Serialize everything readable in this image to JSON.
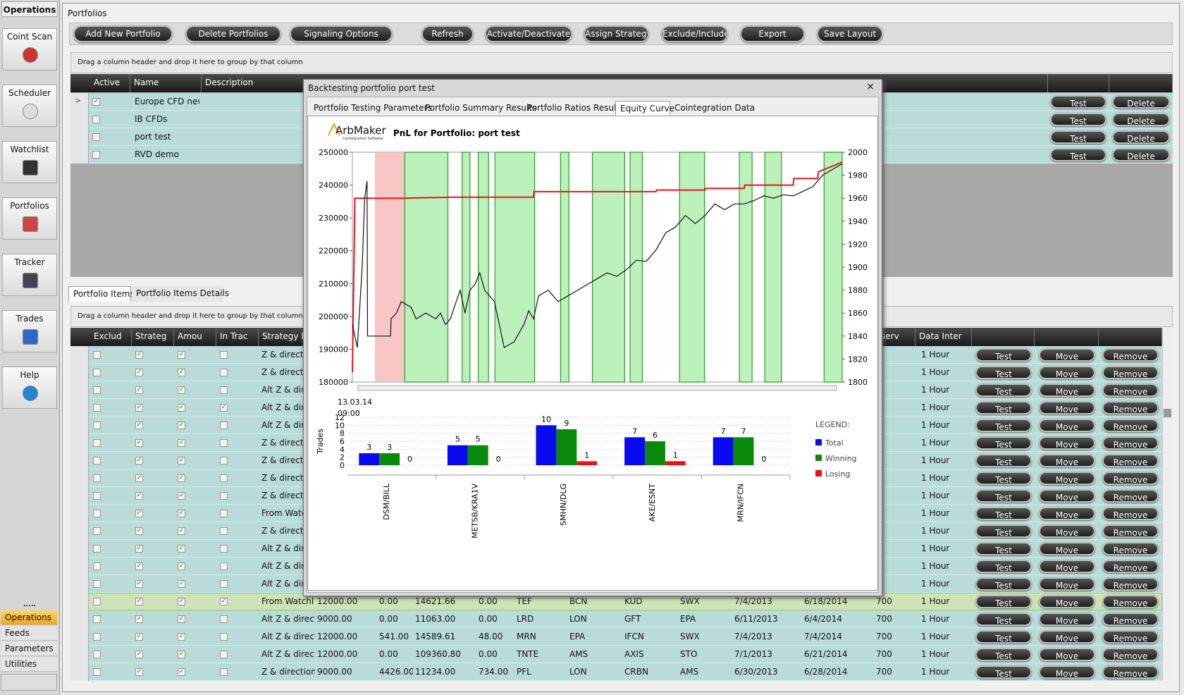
{
  "sidebar": {
    "title": "Operations",
    "buttons": [
      "Coint Scan",
      "Scheduler",
      "Watchlist",
      "Portfolios",
      "Tracker",
      "Trades",
      "Help"
    ],
    "nav": [
      "Operations",
      "Feeds",
      "Parameters",
      "Utilities"
    ]
  },
  "portfolios": {
    "title": "Portfolios",
    "toolbar": [
      "Add New Portfolio",
      "Delete Portfolios",
      "Signaling Options",
      "Refresh",
      "Activate/Deactivate",
      "Assign Strategy",
      "Exclude/Include",
      "Export",
      "Save Layout"
    ],
    "group_hint": "Drag a column header and drop it here to group by that column",
    "columns": [
      "Active",
      "Name",
      "Description"
    ],
    "rows": [
      "Europe CFD new",
      "IB CFDs",
      "port test",
      "RVD demo"
    ],
    "test_button": "Test",
    "delete_button": "Delete"
  },
  "items": {
    "tabs": [
      "Portfolio Items",
      "Portfolio Items Details"
    ],
    "group_hint": "Drag a column header and drop it here to group by that column",
    "columns": [
      "Exclud",
      "Strateg",
      "Amou",
      "In Trac",
      "Strategy N"
    ],
    "observ_column": "serv",
    "interval_column": "Data Inter",
    "test_button": "Test",
    "move_button": "Move",
    "remove_button": "Remove",
    "rows": [
      {
        "strategy": "Z & directi",
        "interval": "1 Hour",
        "in_trade": false
      },
      {
        "strategy": "Z & directi",
        "interval": "1 Hour",
        "in_trade": false
      },
      {
        "strategy": "Alt Z & dire",
        "interval": "1 Hour",
        "in_trade": false
      },
      {
        "strategy": "Alt Z & dire",
        "interval": "1 Hour",
        "in_trade": true
      },
      {
        "strategy": "Alt Z & dire",
        "interval": "1 Hour",
        "in_trade": false
      },
      {
        "strategy": "Z & directi",
        "interval": "1 Hour",
        "in_trade": false
      },
      {
        "strategy": "Z & directi",
        "interval": "1 Hour",
        "in_trade": false
      },
      {
        "strategy": "Z & directi",
        "interval": "1 Hour",
        "in_trade": false
      },
      {
        "strategy": "Z & directi",
        "interval": "1 Hour",
        "in_trade": false
      },
      {
        "strategy": "From Watc",
        "interval": "1 Hour",
        "in_trade": false
      },
      {
        "strategy": "Z & directi",
        "interval": "1 Hour",
        "in_trade": false
      },
      {
        "strategy": "Alt Z & dire",
        "interval": "1 Hour",
        "in_trade": false
      },
      {
        "strategy": "Alt Z & dire",
        "interval": "1 Hour",
        "in_trade": false
      },
      {
        "strategy": "Alt Z & dire",
        "interval": "1 Hour",
        "in_trade": false
      },
      {
        "strategy": "From Watchl",
        "values": [
          "12000.00",
          "0.00",
          "14621.66",
          "0.00",
          "TEF",
          "BCN",
          "KUD",
          "SWX",
          "7/4/2013",
          "6/18/2014"
        ],
        "observ": "700",
        "interval": "1 Hour",
        "in_trade": true
      },
      {
        "strategy": "Alt Z & direct",
        "values": [
          "9000.00",
          "0.00",
          "11063.00",
          "0.00",
          "LRD",
          "LON",
          "GFT",
          "EPA",
          "6/11/2013",
          "6/4/2014"
        ],
        "observ": "700",
        "interval": "1 Hour",
        "in_trade": false
      },
      {
        "strategy": "Alt Z & direct",
        "values": [
          "12000.00",
          "541.00",
          "14589.61",
          "48.00",
          "MRN",
          "EPA",
          "IFCN",
          "SWX",
          "7/4/2013",
          "7/4/2014"
        ],
        "observ": "700",
        "interval": "1 Hour",
        "in_trade": false
      },
      {
        "strategy": "Alt Z & direct",
        "values": [
          "12000.00",
          "0.00",
          "109360.80",
          "0.00",
          "TNTE",
          "AMS",
          "AXIS",
          "STO",
          "7/1/2013",
          "6/21/2014"
        ],
        "observ": "700",
        "interval": "1 Hour",
        "in_trade": false
      },
      {
        "strategy": "Z & direction",
        "values": [
          "9000.00",
          "4426.00",
          "11234.00",
          "734.00",
          "PFL",
          "LON",
          "CRBN",
          "AMS",
          "6/30/2013",
          "6/28/2014"
        ],
        "observ": "700",
        "interval": "1 Hour",
        "in_trade": false
      }
    ]
  },
  "dialog": {
    "title": "Backtesting portfolio port test",
    "tabs": [
      "Portfolio Testing Parameters",
      "Portfolio Summary Results",
      "Portfolio Ratios Results",
      "Equity Curve",
      "Cointegration Data"
    ],
    "logo": "ArbMaker",
    "logo_sub": "Cointegration Software",
    "equity": {
      "type": "line",
      "title": "PnL for Portfolio: port test",
      "xlim": [
        0,
        100
      ],
      "ylim": [
        180000,
        250000
      ],
      "yticks": [
        180000,
        190000,
        200000,
        210000,
        220000,
        230000,
        240000,
        250000
      ],
      "y2lim": [
        1800,
        2000
      ],
      "y2ticks": [
        1800,
        1820,
        1840,
        1860,
        1880,
        1900,
        1920,
        1940,
        1960,
        1980,
        2000
      ],
      "start_label": [
        "13.03.14",
        "09:00"
      ],
      "losing_bands": [
        [
          4.6,
          10.7
        ]
      ],
      "winning_bands": [
        [
          10.7,
          19.5
        ],
        [
          22.4,
          24
        ],
        [
          25.7,
          27.8
        ],
        [
          29.1,
          37.2
        ],
        [
          42.5,
          44.2
        ],
        [
          49,
          55.6
        ],
        [
          56.7,
          59.2
        ],
        [
          66.8,
          71.9
        ],
        [
          79,
          81.6
        ],
        [
          84.2,
          87.6
        ],
        [
          96.3,
          100
        ]
      ],
      "series": [
        {
          "color": "#e8141a",
          "x": [
            0,
            0.5,
            10,
            20,
            37,
            37.1,
            62,
            62.1,
            72,
            72.1,
            80,
            80.1,
            90,
            90.1,
            95,
            95.1,
            100
          ],
          "values": [
            183000,
            236000,
            236000,
            236300,
            236300,
            238000,
            238000,
            238500,
            238500,
            239000,
            239000,
            240000,
            240000,
            242000,
            242000,
            244000,
            247000
          ]
        },
        {
          "color": "#111111",
          "axis": "y2",
          "x": [
            0,
            1,
            2,
            2.5,
            3,
            3.1,
            7.8,
            7.9,
            9,
            10,
            12,
            13,
            15,
            17,
            18,
            19,
            20,
            22,
            23,
            24,
            25,
            26,
            27,
            29,
            30,
            31,
            33,
            35,
            36,
            37,
            38,
            40,
            42,
            44,
            46,
            48,
            50,
            52,
            54,
            56,
            58,
            60,
            62,
            64,
            66,
            68,
            70,
            72,
            74,
            76,
            78,
            80,
            82,
            84,
            86,
            88,
            90,
            92,
            94,
            96,
            98,
            100
          ],
          "values": [
            1850,
            1830,
            1900,
            1960,
            1975,
            1840,
            1840,
            1855,
            1860,
            1870,
            1865,
            1855,
            1860,
            1855,
            1860,
            1850,
            1855,
            1880,
            1860,
            1880,
            1885,
            1895,
            1880,
            1870,
            1850,
            1830,
            1835,
            1850,
            1862,
            1855,
            1875,
            1880,
            1870,
            1875,
            1880,
            1885,
            1890,
            1895,
            1892,
            1898,
            1906,
            1905,
            1915,
            1930,
            1935,
            1945,
            1938,
            1945,
            1955,
            1950,
            1955,
            1955,
            1958,
            1962,
            1960,
            1963,
            1962,
            1966,
            1970,
            1980,
            1985,
            1990
          ]
        }
      ]
    },
    "trades": {
      "type": "bar",
      "y_label": "Trades",
      "categories": [
        "DSM/BILL",
        "METSB/KRA1V",
        "SMHN/DLG",
        "AKE/ESNT",
        "MRN/IFCN"
      ],
      "ylim": [
        0,
        12
      ],
      "yticks": [
        0,
        2,
        4,
        6,
        8,
        10,
        12
      ],
      "legend_title": "LEGEND:",
      "series": [
        {
          "name": "Total",
          "color": "#0a0af0",
          "values": [
            3,
            5,
            10,
            7,
            7
          ]
        },
        {
          "name": "Winning",
          "color": "#0a8a0a",
          "values": [
            3,
            5,
            9,
            6,
            7
          ]
        },
        {
          "name": "Losing",
          "color": "#f01010",
          "values": [
            0,
            0,
            1,
            1,
            0
          ]
        }
      ]
    }
  }
}
